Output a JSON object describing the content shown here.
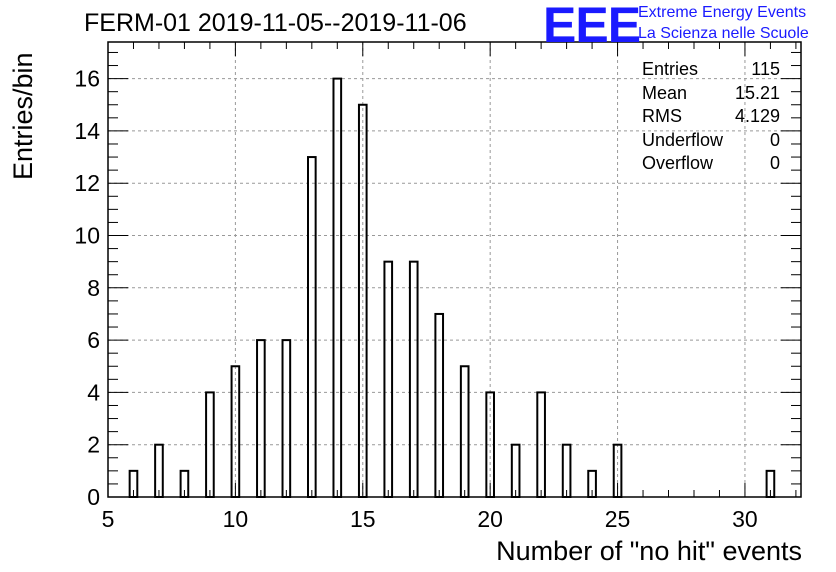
{
  "header": {
    "title": "FERM-01 2019-11-05--2019-11-06",
    "logo_letters": "EEE",
    "logo_line1": "Extreme Energy Events",
    "logo_line2": "La Scienza nelle Scuole"
  },
  "stats": [
    {
      "label": "Entries",
      "value": "115"
    },
    {
      "label": "Mean",
      "value": "15.21"
    },
    {
      "label": "RMS",
      "value": "4.129"
    },
    {
      "label": "Underflow",
      "value": "0"
    },
    {
      "label": "Overflow",
      "value": "0"
    }
  ],
  "colors": {
    "logo": "#1a1aff",
    "bars": "#000000",
    "grid": "#999999"
  },
  "chart_data": {
    "type": "bar",
    "title": "FERM-01 2019-11-05--2019-11-06",
    "xlabel": "Number of \"no hit\" events",
    "ylabel": "Entries/bin",
    "xlim": [
      5,
      32.2
    ],
    "ylim": [
      0,
      17.4
    ],
    "x_ticks": [
      5,
      10,
      15,
      20,
      25,
      30
    ],
    "y_ticks": [
      0,
      2,
      4,
      6,
      8,
      10,
      12,
      14,
      16
    ],
    "grid": true,
    "bar_width": 0.3,
    "x": [
      6,
      7,
      8,
      9,
      10,
      11,
      12,
      13,
      14,
      15,
      16,
      17,
      18,
      19,
      20,
      21,
      22,
      23,
      24,
      25,
      31
    ],
    "values": [
      1,
      2,
      1,
      4,
      5,
      6,
      6,
      13,
      16,
      15,
      9,
      9,
      7,
      5,
      4,
      2,
      4,
      2,
      1,
      2,
      1
    ]
  }
}
